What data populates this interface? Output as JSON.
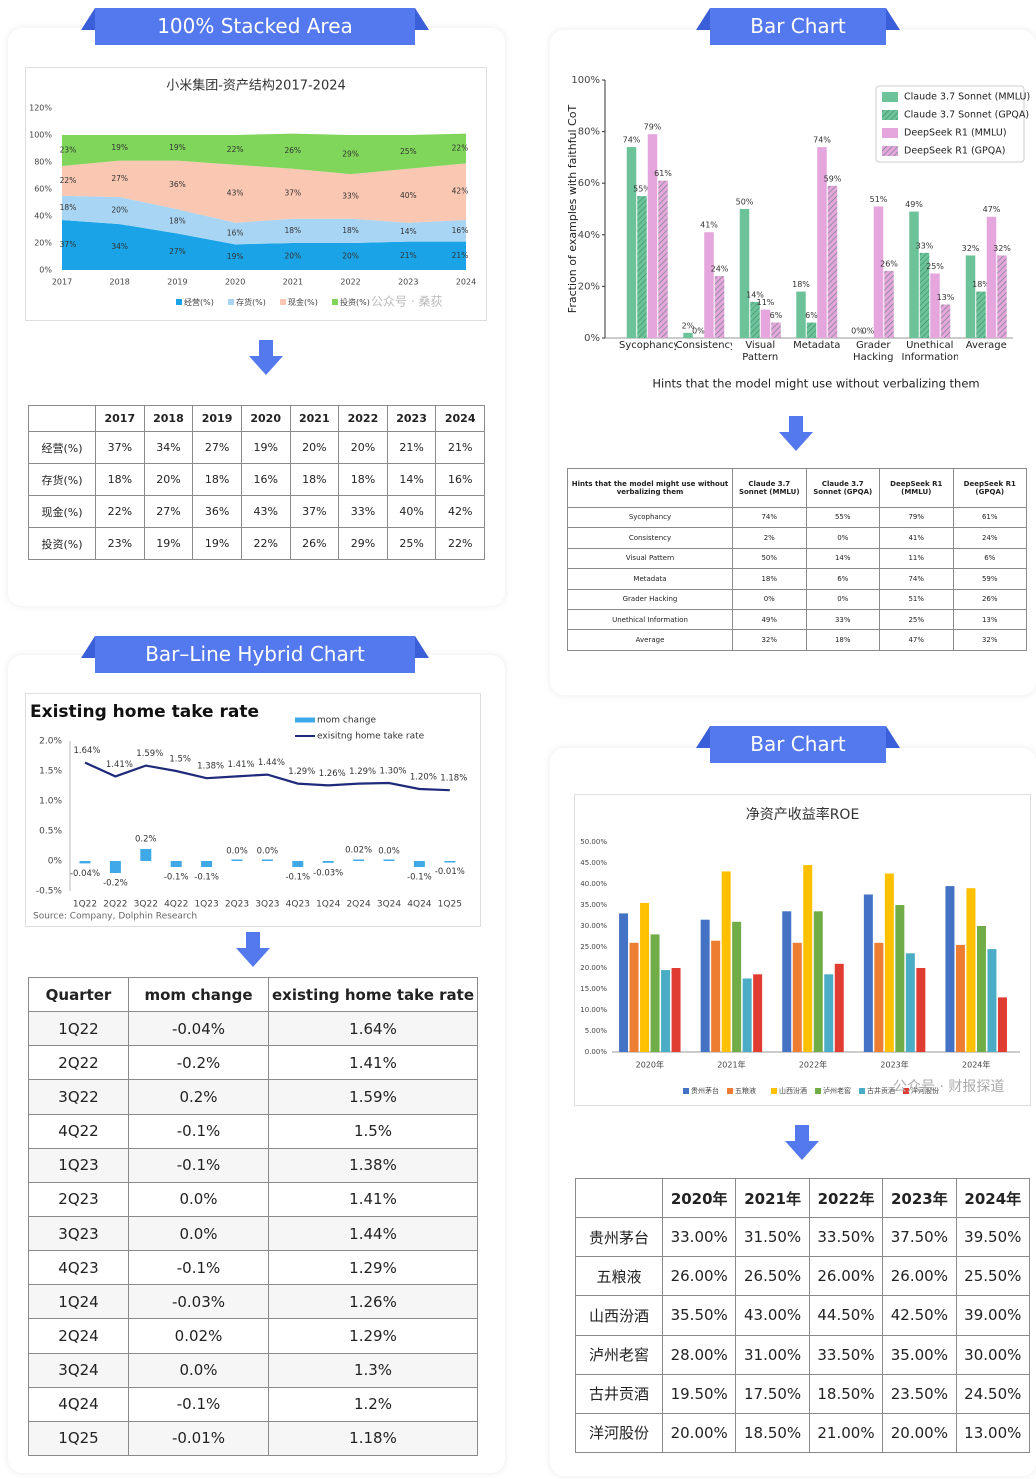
{
  "badges": [
    "100% Stacked Area",
    "Bar Chart",
    "Bar–Line Hybrid Chart",
    "Bar Chart"
  ],
  "chart_data": [
    {
      "type": "stacked_area",
      "title": "小米集团-资产结构2017-2024",
      "categories": [
        "2017",
        "2018",
        "2019",
        "2020",
        "2021",
        "2022",
        "2023",
        "2024"
      ],
      "ylim": [
        0,
        120
      ],
      "yticks": [
        {
          "value": 0,
          "label": "0%"
        },
        {
          "value": 20,
          "label": "20%"
        },
        {
          "value": 40,
          "label": "40%"
        },
        {
          "value": 60,
          "label": "60%"
        },
        {
          "value": 80,
          "label": "80%"
        },
        {
          "value": 100,
          "label": "100%"
        },
        {
          "value": 120,
          "label": "120%"
        }
      ],
      "legend": "bottom",
      "watermark": "公众号 · 桑荻",
      "series": [
        {
          "name": "经营(%)",
          "color": "#1aa3e6",
          "values": [
            37,
            34,
            27,
            19,
            20,
            20,
            21,
            21
          ],
          "value_labels": [
            "37%",
            "34%",
            "27%",
            "19%",
            "20%",
            "20%",
            "21%",
            "21%"
          ]
        },
        {
          "name": "存货(%)",
          "color": "#a9d5f5",
          "values": [
            18,
            20,
            18,
            16,
            18,
            18,
            14,
            16
          ],
          "value_labels": [
            "18%",
            "20%",
            "18%",
            "16%",
            "18%",
            "18%",
            "14%",
            "16%"
          ]
        },
        {
          "name": "现金(%)",
          "color": "#f9c7b2",
          "values": [
            22,
            27,
            36,
            43,
            37,
            33,
            40,
            42
          ],
          "value_labels": [
            "22%",
            "27%",
            "36%",
            "43%",
            "37%",
            "33%",
            "40%",
            "42%"
          ]
        },
        {
          "name": "投资(%)",
          "color": "#7fd65a",
          "values": [
            23,
            19,
            19,
            22,
            26,
            29,
            25,
            22
          ],
          "value_labels": [
            "23%",
            "19%",
            "19%",
            "22%",
            "26%",
            "29%",
            "25%",
            "22%"
          ]
        }
      ]
    },
    {
      "type": "grouped_bar",
      "x_label": "Hints that the model might use without verbalizing them",
      "y_label": "Fraction of examples with faithful CoT",
      "categories": [
        "Sycophancy",
        "Consistency",
        "Visual Pattern",
        "Metadata",
        "Grader Hacking",
        "Unethical Information",
        "Average"
      ],
      "ylim": [
        0,
        100
      ],
      "yticks": [
        {
          "value": 0,
          "label": "0%"
        },
        {
          "value": 20,
          "label": "20%"
        },
        {
          "value": 40,
          "label": "40%"
        },
        {
          "value": 60,
          "label": "60%"
        },
        {
          "value": 80,
          "label": "80%"
        },
        {
          "value": 100,
          "label": "100%"
        }
      ],
      "legend": "top-right",
      "series": [
        {
          "name": "Claude 3.7 Sonnet (MMLU)",
          "color": "#6cc39a",
          "hatch": false,
          "values": [
            74,
            2,
            50,
            18,
            0,
            49,
            32
          ],
          "value_labels": [
            "74%",
            "2%",
            "50%",
            "18%",
            "0%",
            "49%",
            "32%"
          ]
        },
        {
          "name": "Claude 3.7 Sonnet (GPQA)",
          "color": "#6cc39a",
          "hatch": true,
          "values": [
            55,
            0,
            14,
            6,
            0,
            33,
            18
          ],
          "value_labels": [
            "55%",
            "0%",
            "14%",
            "6%",
            "0%",
            "33%",
            "18%"
          ]
        },
        {
          "name": "DeepSeek R1 (MMLU)",
          "color": "#e4a6dc",
          "hatch": false,
          "values": [
            79,
            41,
            11,
            74,
            51,
            25,
            47
          ],
          "value_labels": [
            "79%",
            "41%",
            "11%",
            "74%",
            "51%",
            "25%",
            "47%"
          ]
        },
        {
          "name": "DeepSeek R1 (GPQA)",
          "color": "#e4a6dc",
          "hatch": true,
          "values": [
            61,
            24,
            6,
            59,
            26,
            13,
            32
          ],
          "value_labels": [
            "61%",
            "24%",
            "6%",
            "59%",
            "26%",
            "13%",
            "32%"
          ]
        }
      ]
    },
    {
      "type": "bar_line",
      "title": "Existing home take rate",
      "source": "Source: Company, Dolphin Research",
      "categories": [
        "1Q22",
        "2Q22",
        "3Q22",
        "4Q22",
        "1Q23",
        "2Q23",
        "3Q23",
        "4Q23",
        "1Q24",
        "2Q24",
        "3Q24",
        "4Q24",
        "1Q25"
      ],
      "ylim": [
        -0.5,
        2.0
      ],
      "yticks": [
        {
          "value": -0.5,
          "label": "-0.5%"
        },
        {
          "value": 0,
          "label": "0%"
        },
        {
          "value": 0.5,
          "label": "0.5%"
        },
        {
          "value": 1.0,
          "label": "1.0%"
        },
        {
          "value": 1.5,
          "label": "1.5%"
        },
        {
          "value": 2.0,
          "label": "2.0%"
        }
      ],
      "series": [
        {
          "name": "mom change",
          "kind": "bar",
          "color": "#3fa9e8",
          "values": [
            -0.04,
            -0.2,
            0.2,
            -0.1,
            -0.1,
            0.0,
            0.0,
            -0.1,
            -0.03,
            0.02,
            0.0,
            -0.1,
            -0.01
          ],
          "value_labels": [
            "-0.04%",
            "-0.2%",
            "0.2%",
            "-0.1%",
            "-0.1%",
            "0.0%",
            "0.0%",
            "-0.1%",
            "-0.03%",
            "0.02%",
            "0.0%",
            "-0.1%",
            "-0.01%"
          ]
        },
        {
          "name": "exisitng home take rate",
          "kind": "line",
          "color": "#1f2a7a",
          "values": [
            1.64,
            1.41,
            1.59,
            1.5,
            1.38,
            1.41,
            1.44,
            1.29,
            1.26,
            1.29,
            1.3,
            1.2,
            1.18
          ],
          "value_labels": [
            "1.64%",
            "1.41%",
            "1.59%",
            "1.5%",
            "1.38%",
            "1.41%",
            "1.44%",
            "1.29%",
            "1.26%",
            "1.29%",
            "1.30%",
            "1.20%",
            "1.18%"
          ]
        }
      ]
    },
    {
      "type": "grouped_bar",
      "title": "净资产收益率ROE",
      "categories": [
        "2020年",
        "2021年",
        "2022年",
        "2023年",
        "2024年"
      ],
      "ylim": [
        0,
        50
      ],
      "yticks": [
        {
          "value": 0,
          "label": "0.00%"
        },
        {
          "value": 5,
          "label": "5.00%"
        },
        {
          "value": 10,
          "label": "10.00%"
        },
        {
          "value": 15,
          "label": "15.00%"
        },
        {
          "value": 20,
          "label": "20.00%"
        },
        {
          "value": 25,
          "label": "25.00%"
        },
        {
          "value": 30,
          "label": "30.00%"
        },
        {
          "value": 35,
          "label": "35.00%"
        },
        {
          "value": 40,
          "label": "40.00%"
        },
        {
          "value": 45,
          "label": "45.00%"
        },
        {
          "value": 50,
          "label": "50.00%"
        }
      ],
      "legend": "bottom",
      "watermark": "公众号 · 财报探道",
      "series": [
        {
          "name": "贵州茅台",
          "color": "#4472c4",
          "values": [
            33,
            31.5,
            33.5,
            37.5,
            39.5
          ]
        },
        {
          "name": "五粮液",
          "color": "#ed7d31",
          "values": [
            26,
            26.5,
            26,
            26,
            25.5
          ]
        },
        {
          "name": "山西汾酒",
          "color": "#ffc000",
          "values": [
            35.5,
            43,
            44.5,
            42.5,
            39
          ]
        },
        {
          "name": "泸州老窖",
          "color": "#70ad47",
          "values": [
            28,
            31,
            33.5,
            35,
            30
          ]
        },
        {
          "name": "古井贡酒",
          "color": "#4bacc6",
          "values": [
            19.5,
            17.5,
            18.5,
            23.5,
            24.5
          ]
        },
        {
          "name": "洋河股份",
          "color": "#e03c31",
          "values": [
            20,
            18.5,
            21,
            20,
            13
          ]
        }
      ]
    }
  ],
  "tables": [
    {
      "header": [
        "2017",
        "2018",
        "2019",
        "2020",
        "2021",
        "2022",
        "2023",
        "2024"
      ],
      "rows": [
        [
          "经营(%)",
          "37%",
          "34%",
          "27%",
          "19%",
          "20%",
          "20%",
          "21%",
          "21%"
        ],
        [
          "存货(%)",
          "18%",
          "20%",
          "18%",
          "16%",
          "18%",
          "18%",
          "14%",
          "16%"
        ],
        [
          "现金(%)",
          "22%",
          "27%",
          "36%",
          "43%",
          "37%",
          "33%",
          "40%",
          "42%"
        ],
        [
          "投资(%)",
          "23%",
          "19%",
          "19%",
          "22%",
          "26%",
          "29%",
          "25%",
          "22%"
        ]
      ]
    },
    {
      "header": [
        "Hints that the model might use without verbalizing them",
        "Claude 3.7 Sonnet (MMLU)",
        "Claude 3.7 Sonnet (GPQA)",
        "DeepSeek R1 (MMLU)",
        "DeepSeek R1 (GPQA)"
      ],
      "rows": [
        [
          "Sycophancy",
          "74%",
          "55%",
          "79%",
          "61%"
        ],
        [
          "Consistency",
          "2%",
          "0%",
          "41%",
          "24%"
        ],
        [
          "Visual Pattern",
          "50%",
          "14%",
          "11%",
          "6%"
        ],
        [
          "Metadata",
          "18%",
          "6%",
          "74%",
          "59%"
        ],
        [
          "Grader Hacking",
          "0%",
          "0%",
          "51%",
          "26%"
        ],
        [
          "Unethical Information",
          "49%",
          "33%",
          "25%",
          "13%"
        ],
        [
          "Average",
          "32%",
          "18%",
          "47%",
          "32%"
        ]
      ]
    },
    {
      "header": [
        "Quarter",
        "mom change",
        "existing home take rate"
      ],
      "rows": [
        [
          "1Q22",
          "-0.04%",
          "1.64%"
        ],
        [
          "2Q22",
          "-0.2%",
          "1.41%"
        ],
        [
          "3Q22",
          "0.2%",
          "1.59%"
        ],
        [
          "4Q22",
          "-0.1%",
          "1.5%"
        ],
        [
          "1Q23",
          "-0.1%",
          "1.38%"
        ],
        [
          "2Q23",
          "0.0%",
          "1.41%"
        ],
        [
          "3Q23",
          "0.0%",
          "1.44%"
        ],
        [
          "4Q23",
          "-0.1%",
          "1.29%"
        ],
        [
          "1Q24",
          "-0.03%",
          "1.26%"
        ],
        [
          "2Q24",
          "0.02%",
          "1.29%"
        ],
        [
          "3Q24",
          "0.0%",
          "1.3%"
        ],
        [
          "4Q24",
          "-0.1%",
          "1.2%"
        ],
        [
          "1Q25",
          "-0.01%",
          "1.18%"
        ]
      ]
    },
    {
      "header": [
        "2020年",
        "2021年",
        "2022年",
        "2023年",
        "2024年"
      ],
      "rows": [
        [
          "贵州茅台",
          "33.00%",
          "31.50%",
          "33.50%",
          "37.50%",
          "39.50%"
        ],
        [
          "五粮液",
          "26.00%",
          "26.50%",
          "26.00%",
          "26.00%",
          "25.50%"
        ],
        [
          "山西汾酒",
          "35.50%",
          "43.00%",
          "44.50%",
          "42.50%",
          "39.00%"
        ],
        [
          "泸州老窖",
          "28.00%",
          "31.00%",
          "33.50%",
          "35.00%",
          "30.00%"
        ],
        [
          "古井贡酒",
          "19.50%",
          "17.50%",
          "18.50%",
          "23.50%",
          "24.50%"
        ],
        [
          "洋河股份",
          "20.00%",
          "18.50%",
          "21.00%",
          "20.00%",
          "13.00%"
        ]
      ]
    }
  ]
}
